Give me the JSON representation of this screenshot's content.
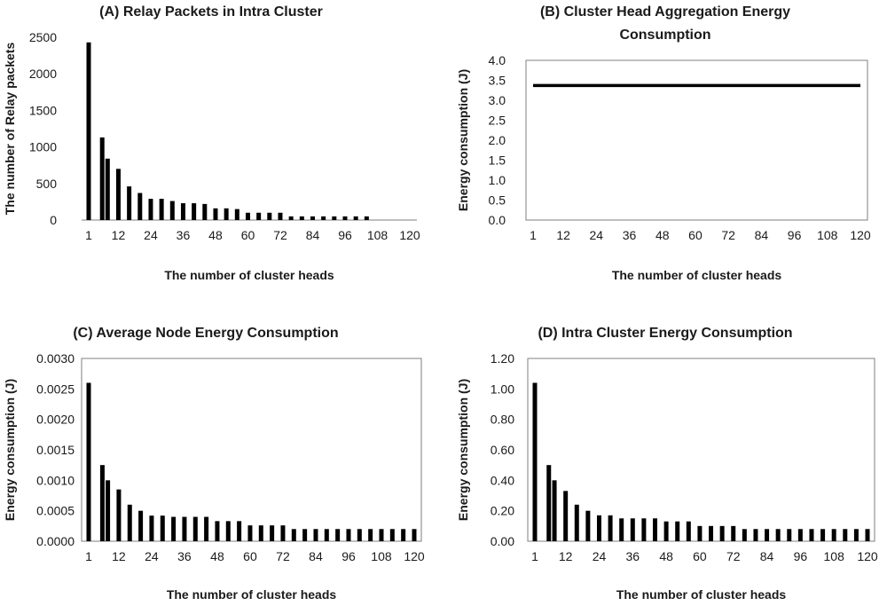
{
  "chart_data": [
    {
      "id": "A",
      "type": "bar",
      "title": "(A) Relay Packets in Intra Cluster",
      "xlabel": "The number of cluster heads",
      "ylabel": "The number of Relay packets",
      "x": [
        1,
        6,
        8,
        12,
        16,
        20,
        24,
        28,
        32,
        36,
        40,
        44,
        48,
        52,
        56,
        60,
        64,
        68,
        72,
        76,
        80,
        84,
        88,
        92,
        96,
        100,
        104,
        108,
        112,
        116,
        120
      ],
      "values": [
        2430,
        1130,
        840,
        700,
        460,
        370,
        290,
        290,
        260,
        230,
        230,
        220,
        160,
        160,
        150,
        100,
        100,
        100,
        100,
        50,
        50,
        50,
        50,
        50,
        50,
        50,
        50,
        0,
        0,
        0,
        0
      ],
      "x_ticks": [
        "1",
        "12",
        "24",
        "36",
        "48",
        "60",
        "72",
        "84",
        "96",
        "108",
        "120"
      ],
      "y_ticks": [
        "0",
        "500",
        "1000",
        "1500",
        "2000",
        "2500"
      ],
      "ylim": [
        0,
        2500
      ],
      "xlim": [
        1,
        120
      ],
      "grid": false
    },
    {
      "id": "B",
      "type": "line",
      "title_lines": [
        "(B) Cluster Head Aggregation Energy",
        "Consumption"
      ],
      "xlabel": "The number of cluster heads",
      "ylabel": "Energy consumption (J)",
      "x": [
        1,
        120
      ],
      "values": [
        3.37,
        3.37
      ],
      "x_ticks": [
        "1",
        "12",
        "24",
        "36",
        "48",
        "60",
        "72",
        "84",
        "96",
        "108",
        "120"
      ],
      "y_ticks": [
        "0.0",
        "0.5",
        "1.0",
        "1.5",
        "2.0",
        "2.5",
        "3.0",
        "3.5",
        "4.0"
      ],
      "ylim": [
        0,
        4.0
      ],
      "xlim": [
        1,
        120
      ],
      "grid": false
    },
    {
      "id": "C",
      "type": "bar",
      "title": "(C) Average  Node Energy Consumption",
      "xlabel": "The number of cluster heads",
      "ylabel": "Energy consumption (J)",
      "x": [
        1,
        6,
        8,
        12,
        16,
        20,
        24,
        28,
        32,
        36,
        40,
        44,
        48,
        52,
        56,
        60,
        64,
        68,
        72,
        76,
        80,
        84,
        88,
        92,
        96,
        100,
        104,
        108,
        112,
        116,
        120
      ],
      "values": [
        0.0026,
        0.00125,
        0.001,
        0.00085,
        0.0006,
        0.0005,
        0.00042,
        0.00042,
        0.0004,
        0.0004,
        0.0004,
        0.0004,
        0.00033,
        0.00033,
        0.00033,
        0.00026,
        0.00026,
        0.00026,
        0.00026,
        0.0002,
        0.0002,
        0.0002,
        0.0002,
        0.0002,
        0.0002,
        0.0002,
        0.0002,
        0.0002,
        0.0002,
        0.0002,
        0.0002
      ],
      "x_ticks": [
        "1",
        "12",
        "24",
        "36",
        "48",
        "60",
        "72",
        "84",
        "96",
        "108",
        "120"
      ],
      "y_ticks": [
        "0.0000",
        "0.0005",
        "0.0010",
        "0.0015",
        "0.0020",
        "0.0025",
        "0.0030"
      ],
      "ylim": [
        0,
        0.003
      ],
      "xlim": [
        1,
        120
      ],
      "grid": false
    },
    {
      "id": "D",
      "type": "bar",
      "title": "(D) Intra Cluster Energy Consumption",
      "xlabel": "The number of cluster heads",
      "ylabel": "Energy consumption (J)",
      "x": [
        1,
        6,
        8,
        12,
        16,
        20,
        24,
        28,
        32,
        36,
        40,
        44,
        48,
        52,
        56,
        60,
        64,
        68,
        72,
        76,
        80,
        84,
        88,
        92,
        96,
        100,
        104,
        108,
        112,
        116,
        120
      ],
      "values": [
        1.04,
        0.5,
        0.4,
        0.33,
        0.24,
        0.2,
        0.17,
        0.17,
        0.15,
        0.15,
        0.15,
        0.15,
        0.13,
        0.13,
        0.13,
        0.1,
        0.1,
        0.1,
        0.1,
        0.08,
        0.08,
        0.08,
        0.08,
        0.08,
        0.08,
        0.08,
        0.08,
        0.08,
        0.08,
        0.08,
        0.08
      ],
      "x_ticks": [
        "1",
        "12",
        "24",
        "36",
        "48",
        "60",
        "72",
        "84",
        "96",
        "108",
        "120"
      ],
      "y_ticks": [
        "0.00",
        "0.20",
        "0.40",
        "0.60",
        "0.80",
        "1.00",
        "1.20"
      ],
      "ylim": [
        0,
        1.2
      ],
      "xlim": [
        1,
        120
      ],
      "grid": false
    }
  ]
}
